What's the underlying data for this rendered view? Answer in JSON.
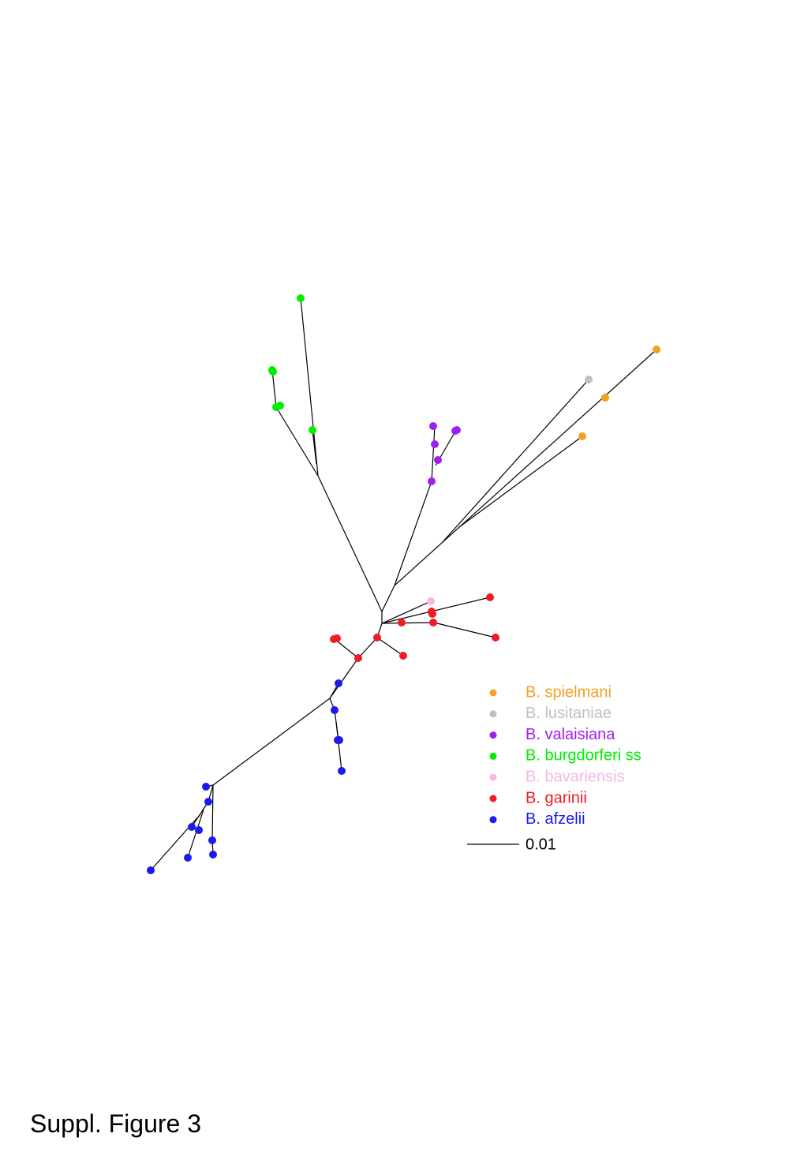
{
  "figure": {
    "legend": [
      {
        "label": "B. spielmani",
        "color": "#f4a020"
      },
      {
        "label": "B. lusitaniae",
        "color": "#c0c0c0"
      },
      {
        "label": "B. valaisiana",
        "color": "#a020f0"
      },
      {
        "label": "B. burgdorferi ss",
        "color": "#00ee00"
      },
      {
        "label": "B. bavariensis",
        "color": "#f4b8e4"
      },
      {
        "label": "B. garinii",
        "color": "#ee1c24"
      },
      {
        "label": "B. afzelii",
        "color": "#1a1aee"
      }
    ],
    "scale_bar": {
      "label": "0.01"
    },
    "caption": "Suppl. Figure 3"
  }
}
